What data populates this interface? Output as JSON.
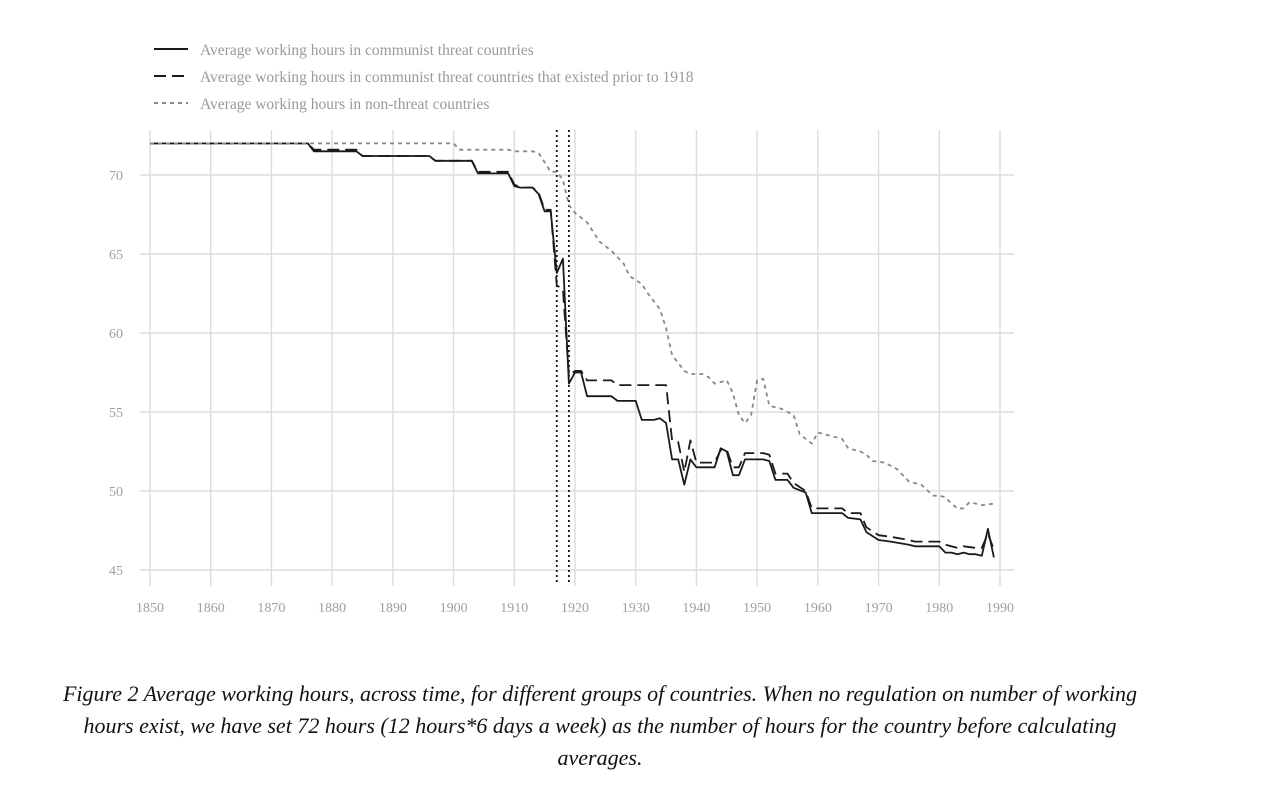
{
  "caption": "Figure 2 Average working hours, across time, for different groups of countries. When no regulation on number of working hours exist, we have set 72 hours (12 hours*6 days a week) as the number of hours for the country before calculating averages.",
  "chart_data": {
    "type": "line",
    "title": "",
    "xlabel": "",
    "ylabel": "",
    "xlim": [
      1850,
      1990
    ],
    "ylim": [
      44,
      73
    ],
    "x_ticks": [
      1850,
      1860,
      1870,
      1880,
      1890,
      1900,
      1910,
      1920,
      1930,
      1940,
      1950,
      1960,
      1970,
      1980,
      1990
    ],
    "y_ticks": [
      45,
      50,
      55,
      60,
      65,
      70
    ],
    "grid": true,
    "legend_position": "top-left",
    "vertical_reference_lines": [
      1917,
      1919
    ],
    "series": [
      {
        "name": "Average working hours in communist threat countries",
        "style": "solid",
        "color": "#1a1a1a",
        "points": [
          [
            1850,
            72
          ],
          [
            1876,
            72
          ],
          [
            1877,
            71.5
          ],
          [
            1884,
            71.5
          ],
          [
            1885,
            71.2
          ],
          [
            1896,
            71.2
          ],
          [
            1897,
            70.9
          ],
          [
            1903,
            70.9
          ],
          [
            1904,
            70.1
          ],
          [
            1909,
            70.1
          ],
          [
            1910,
            69.3
          ],
          [
            1911,
            69.2
          ],
          [
            1913,
            69.2
          ],
          [
            1914,
            68.8
          ],
          [
            1915,
            67.7
          ],
          [
            1916,
            67.7
          ],
          [
            1917,
            63.8
          ],
          [
            1918,
            64.7
          ],
          [
            1919,
            56.8
          ],
          [
            1920,
            57.5
          ],
          [
            1921,
            57.5
          ],
          [
            1922,
            56
          ],
          [
            1926,
            56
          ],
          [
            1927,
            55.7
          ],
          [
            1930,
            55.7
          ],
          [
            1931,
            54.5
          ],
          [
            1933,
            54.5
          ],
          [
            1934,
            54.6
          ],
          [
            1935,
            54.3
          ],
          [
            1936,
            52
          ],
          [
            1937,
            52
          ],
          [
            1938,
            50.4
          ],
          [
            1939,
            52
          ],
          [
            1940,
            51.5
          ],
          [
            1943,
            51.5
          ],
          [
            1944,
            52.7
          ],
          [
            1945,
            52.5
          ],
          [
            1946,
            51
          ],
          [
            1947,
            51
          ],
          [
            1948,
            52
          ],
          [
            1951,
            52
          ],
          [
            1952,
            51.9
          ],
          [
            1953,
            50.7
          ],
          [
            1955,
            50.7
          ],
          [
            1956,
            50.2
          ],
          [
            1958,
            49.9
          ],
          [
            1959,
            48.6
          ],
          [
            1963,
            48.6
          ],
          [
            1964,
            48.6
          ],
          [
            1965,
            48.3
          ],
          [
            1967,
            48.2
          ],
          [
            1968,
            47.4
          ],
          [
            1970,
            46.9
          ],
          [
            1972,
            46.8
          ],
          [
            1975,
            46.6
          ],
          [
            1976,
            46.5
          ],
          [
            1980,
            46.5
          ],
          [
            1981,
            46.1
          ],
          [
            1982,
            46.1
          ],
          [
            1983,
            46
          ],
          [
            1984,
            46.1
          ],
          [
            1985,
            46
          ],
          [
            1986,
            46
          ],
          [
            1987,
            45.9
          ],
          [
            1988,
            47.6
          ],
          [
            1989,
            45.8
          ]
        ]
      },
      {
        "name": "Average working hours in communist threat countries that existed prior to 1918",
        "style": "dashed",
        "color": "#1a1a1a",
        "points": [
          [
            1850,
            72
          ],
          [
            1876,
            72
          ],
          [
            1877,
            71.6
          ],
          [
            1884,
            71.6
          ],
          [
            1885,
            71.2
          ],
          [
            1896,
            71.2
          ],
          [
            1897,
            70.9
          ],
          [
            1903,
            70.9
          ],
          [
            1904,
            70.2
          ],
          [
            1909,
            70.2
          ],
          [
            1910,
            69.4
          ],
          [
            1911,
            69.2
          ],
          [
            1913,
            69.2
          ],
          [
            1914,
            68.9
          ],
          [
            1915,
            67.8
          ],
          [
            1916,
            67.8
          ],
          [
            1917,
            63
          ],
          [
            1918,
            62.8
          ],
          [
            1919,
            57.3
          ],
          [
            1920,
            57.6
          ],
          [
            1921,
            57.6
          ],
          [
            1922,
            57
          ],
          [
            1926,
            57
          ],
          [
            1927,
            56.7
          ],
          [
            1934,
            56.7
          ],
          [
            1935,
            56.7
          ],
          [
            1936,
            53.2
          ],
          [
            1937,
            53.1
          ],
          [
            1938,
            51.2
          ],
          [
            1939,
            53.2
          ],
          [
            1940,
            51.8
          ],
          [
            1943,
            51.8
          ],
          [
            1944,
            52.6
          ],
          [
            1945,
            52.6
          ],
          [
            1946,
            51.5
          ],
          [
            1947,
            51.5
          ],
          [
            1948,
            52.4
          ],
          [
            1951,
            52.4
          ],
          [
            1952,
            52.3
          ],
          [
            1953,
            51.1
          ],
          [
            1955,
            51.1
          ],
          [
            1956,
            50.5
          ],
          [
            1958,
            50
          ],
          [
            1959,
            48.9
          ],
          [
            1964,
            48.9
          ],
          [
            1965,
            48.6
          ],
          [
            1967,
            48.6
          ],
          [
            1968,
            47.7
          ],
          [
            1970,
            47.2
          ],
          [
            1972,
            47.1
          ],
          [
            1975,
            46.9
          ],
          [
            1976,
            46.8
          ],
          [
            1980,
            46.8
          ],
          [
            1981,
            46.6
          ],
          [
            1983,
            46.4
          ],
          [
            1984,
            46.5
          ],
          [
            1986,
            46.4
          ],
          [
            1987,
            46.4
          ],
          [
            1988,
            47.3
          ],
          [
            1989,
            46.3
          ]
        ]
      },
      {
        "name": "Average working hours in non-threat countries",
        "style": "dotted",
        "color": "#888888",
        "points": [
          [
            1850,
            72
          ],
          [
            1900,
            72
          ],
          [
            1901,
            71.6
          ],
          [
            1909,
            71.6
          ],
          [
            1910,
            71.5
          ],
          [
            1913,
            71.5
          ],
          [
            1914,
            71.4
          ],
          [
            1916,
            70.2
          ],
          [
            1917,
            70.2
          ],
          [
            1918,
            69.7
          ],
          [
            1919,
            68.1
          ],
          [
            1920,
            67.6
          ],
          [
            1922,
            67
          ],
          [
            1924,
            65.8
          ],
          [
            1926,
            65.2
          ],
          [
            1928,
            64.4
          ],
          [
            1929,
            63.6
          ],
          [
            1931,
            63.1
          ],
          [
            1932,
            62.5
          ],
          [
            1934,
            61.5
          ],
          [
            1935,
            60.3
          ],
          [
            1936,
            58.6
          ],
          [
            1937,
            58.1
          ],
          [
            1938,
            57.6
          ],
          [
            1939,
            57.4
          ],
          [
            1941,
            57.4
          ],
          [
            1942,
            57.2
          ],
          [
            1943,
            56.8
          ],
          [
            1945,
            57
          ],
          [
            1946,
            56.2
          ],
          [
            1947,
            54.8
          ],
          [
            1948,
            54.3
          ],
          [
            1949,
            54.8
          ],
          [
            1950,
            57
          ],
          [
            1951,
            57.1
          ],
          [
            1952,
            55.4
          ],
          [
            1953,
            55.3
          ],
          [
            1954,
            55.2
          ],
          [
            1955,
            55.0
          ],
          [
            1956,
            54.8
          ],
          [
            1957,
            53.6
          ],
          [
            1959,
            53
          ],
          [
            1960,
            53.7
          ],
          [
            1962,
            53.5
          ],
          [
            1964,
            53.3
          ],
          [
            1965,
            52.7
          ],
          [
            1967,
            52.5
          ],
          [
            1968,
            52.3
          ],
          [
            1969,
            51.9
          ],
          [
            1971,
            51.8
          ],
          [
            1973,
            51.4
          ],
          [
            1975,
            50.6
          ],
          [
            1977,
            50.4
          ],
          [
            1979,
            49.7
          ],
          [
            1980,
            49.7
          ],
          [
            1981,
            49.6
          ],
          [
            1982,
            49.2
          ],
          [
            1983,
            48.9
          ],
          [
            1984,
            48.9
          ],
          [
            1985,
            49.3
          ],
          [
            1986,
            49.2
          ],
          [
            1987,
            49.1
          ],
          [
            1989,
            49.2
          ]
        ]
      }
    ]
  }
}
